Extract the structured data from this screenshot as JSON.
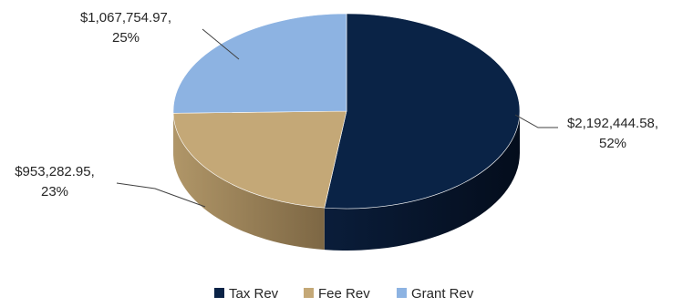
{
  "chart_data": {
    "type": "pie",
    "style": "3d-oval",
    "legend": "bottom",
    "slices": [
      {
        "name": "Tax Rev",
        "value": 2192444.58,
        "value_label": "$2,192,444.58,",
        "percent_label": "52%",
        "color": "#0a2346",
        "side_color": "#061329"
      },
      {
        "name": "Fee Rev",
        "value": 953282.95,
        "value_label": "$953,282.95,",
        "percent_label": "23%",
        "color": "#c4a877",
        "side_color": "#8d7650"
      },
      {
        "name": "Grant Rev",
        "value": 1067754.97,
        "value_label": "$1,067,754.97,",
        "percent_label": "25%",
        "color": "#8db3e2",
        "side_color": "#5f7ea4"
      }
    ]
  }
}
